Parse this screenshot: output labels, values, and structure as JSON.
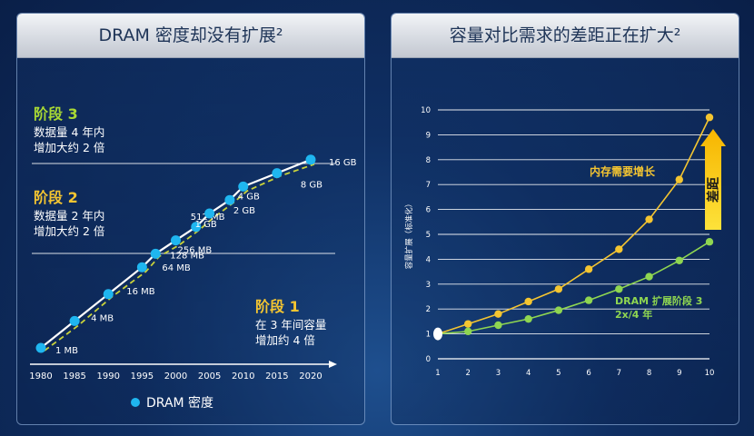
{
  "colors": {
    "dram_marker": "#1fb6f0",
    "trend_line": "#ffffff",
    "trend_dashed": "#c9d23a",
    "demand": "#f4c531",
    "expansion": "#8fd651",
    "stage_yellow": "#f4c531",
    "stage_green": "#a9d934"
  },
  "left": {
    "title": "DRAM 密度却没有扩展²",
    "stages": [
      {
        "title": "阶段 3",
        "lines": [
          "数据量 4 年内",
          "增加大约 2 倍"
        ]
      },
      {
        "title": "阶段 2",
        "lines": [
          "数据量 2 年内",
          "增加大约 2 倍"
        ]
      },
      {
        "title": "阶段 1",
        "lines": [
          "在 3 年间容量",
          "增加约 4 倍"
        ]
      }
    ],
    "legend": "DRAM 密度"
  },
  "right": {
    "title": "容量对比需求的差距正在扩大²",
    "gap_label": "差距"
  },
  "chart_data": [
    {
      "type": "line",
      "x": [
        1980,
        1985,
        1990,
        1995,
        1997,
        2000,
        2003,
        2005,
        2008,
        2010,
        2015,
        2020
      ],
      "point_labels": [
        "1 MB",
        "4 MB",
        "16 MB",
        "64 MB",
        "128 MB",
        "256 MB",
        "512 MB",
        "1 GB",
        "2 GB",
        "4 GB",
        "8 GB",
        "16 GB"
      ],
      "log_values_mb": [
        1,
        4,
        16,
        64,
        128,
        256,
        512,
        1024,
        2048,
        4096,
        8192,
        16384
      ],
      "x_ticks": [
        "1980",
        "1985",
        "1990",
        "1995",
        "2000",
        "2005",
        "2010",
        "2015",
        "2020"
      ],
      "xlim": [
        1980,
        2020
      ],
      "scale": "log",
      "series": [
        {
          "name": "DRAM 密度"
        }
      ],
      "legend_position": "bottom"
    },
    {
      "type": "line",
      "x": [
        1,
        2,
        3,
        4,
        5,
        6,
        7,
        8,
        9,
        10
      ],
      "ylabel": "容量扩展（标准化）",
      "ylim": [
        0,
        10
      ],
      "y_ticks": [
        0,
        1,
        2,
        3,
        4,
        5,
        6,
        7,
        8,
        9,
        10
      ],
      "x_ticks": [
        1,
        2,
        3,
        4,
        5,
        6,
        7,
        8,
        9,
        10
      ],
      "series": [
        {
          "name": "内存需要增长",
          "values": [
            1,
            1.4,
            1.8,
            2.3,
            2.8,
            3.6,
            4.4,
            5.6,
            7.2,
            9.7
          ]
        },
        {
          "name": "DRAM 扩展阶段 3",
          "sub": "2x/4 年",
          "values": [
            1,
            1.1,
            1.35,
            1.6,
            1.95,
            2.35,
            2.8,
            3.3,
            3.95,
            4.7
          ]
        }
      ]
    }
  ]
}
